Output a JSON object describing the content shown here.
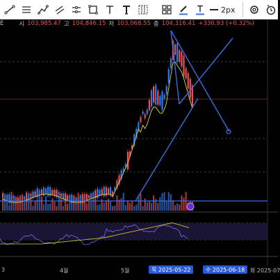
{
  "toolbar": {
    "tools": [
      "trend-line",
      "horizontal-lines",
      "path",
      "parallel-channel",
      "price-range",
      "rectangle",
      "text",
      "text-bold",
      "grid",
      "shapes",
      "pen-color",
      "text-color",
      "line-width",
      "settings",
      "alert"
    ],
    "line_width_label": "2px"
  },
  "ohlc": {
    "edge_label": "E",
    "open_label": "시",
    "open_value": "103,985.47",
    "high_label": "고",
    "high_value": "104,846.15",
    "low_label": "저",
    "low_value": "103,068.55",
    "close_label": "종",
    "close_value": "104,316.41",
    "change": "+330.93 (+0.32%)"
  },
  "time_axis": {
    "left_partial": "3",
    "month_4": "4월",
    "month_5": "5월",
    "marker_a": "목 2025-05-22",
    "marker_b": "수 2025-06-18",
    "right_partial": "화 2025-07"
  },
  "colors": {
    "up": "#e5535b",
    "down": "#2f7ce8",
    "ma": "#e8d23a",
    "rsi": "#7b6cf0",
    "rsi_ma": "#e8d23a",
    "drawing": "#3b6fe0"
  }
}
